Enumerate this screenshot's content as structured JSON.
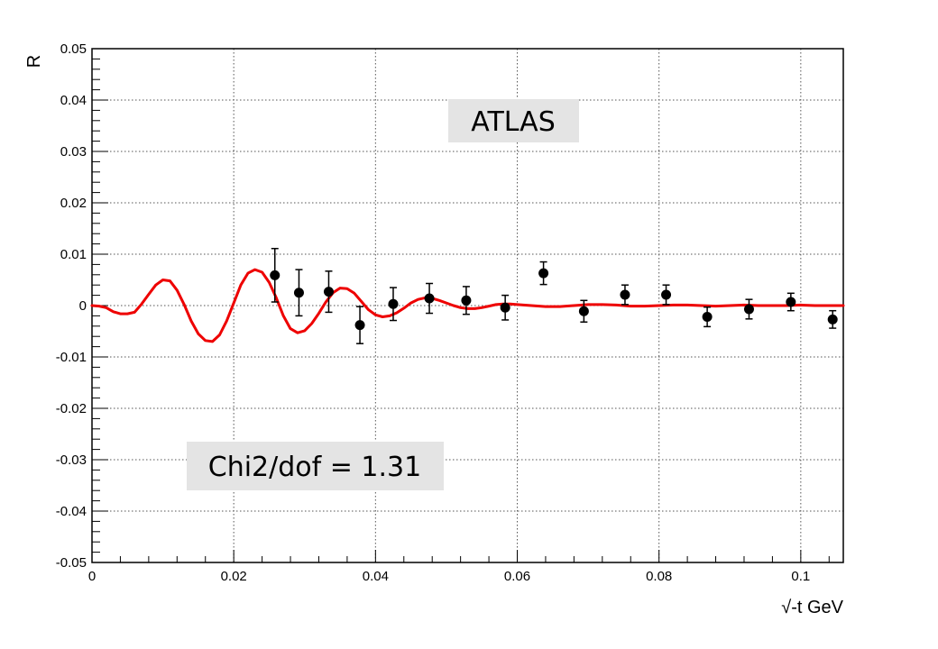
{
  "chart_data": {
    "type": "scatter",
    "title": "",
    "xlabel": "√-t GeV",
    "ylabel": "R",
    "xlim": [
      0,
      0.106
    ],
    "ylim": [
      -0.05,
      0.05
    ],
    "grid": true,
    "x_ticks": [
      0,
      0.02,
      0.04,
      0.06,
      0.08,
      0.1
    ],
    "x_tick_labels": [
      "0",
      "0.02",
      "0.04",
      "0.06",
      "0.08",
      "0.1"
    ],
    "y_ticks": [
      -0.05,
      -0.04,
      -0.03,
      -0.02,
      -0.01,
      0,
      0.01,
      0.02,
      0.03,
      0.04,
      0.05
    ],
    "y_tick_labels": [
      "-0.05",
      "-0.04",
      "-0.03",
      "-0.02",
      "-0.01",
      "0",
      "0.01",
      "0.02",
      "0.03",
      "0.04",
      "0.05"
    ],
    "annotations": [
      "ATLAS",
      "Chi2/dof = 1.31"
    ],
    "series": [
      {
        "kind": "points",
        "color": "#000000",
        "points": [
          {
            "x": 0.0258,
            "y": 0.0059,
            "err": 0.0052
          },
          {
            "x": 0.0292,
            "y": 0.0025,
            "err": 0.0045
          },
          {
            "x": 0.0334,
            "y": 0.0027,
            "err": 0.004
          },
          {
            "x": 0.0378,
            "y": -0.0038,
            "err": 0.0036
          },
          {
            "x": 0.0425,
            "y": 0.0003,
            "err": 0.0032
          },
          {
            "x": 0.0476,
            "y": 0.0014,
            "err": 0.0029
          },
          {
            "x": 0.0528,
            "y": 0.001,
            "err": 0.0027
          },
          {
            "x": 0.0583,
            "y": -0.0004,
            "err": 0.0024
          },
          {
            "x": 0.0637,
            "y": 0.0063,
            "err": 0.0022
          },
          {
            "x": 0.0694,
            "y": -0.0011,
            "err": 0.0021
          },
          {
            "x": 0.0752,
            "y": 0.0021,
            "err": 0.0019
          },
          {
            "x": 0.081,
            "y": 0.0021,
            "err": 0.0019
          },
          {
            "x": 0.0868,
            "y": -0.0022,
            "err": 0.0019
          },
          {
            "x": 0.0927,
            "y": -0.0007,
            "err": 0.0019
          },
          {
            "x": 0.0986,
            "y": 0.0007,
            "err": 0.0017
          },
          {
            "x": 0.1045,
            "y": -0.0027,
            "err": 0.0017
          }
        ]
      },
      {
        "kind": "curve",
        "color": "#ee0000",
        "x": [
          0,
          0.001,
          0.002,
          0.003,
          0.004,
          0.005,
          0.006,
          0.007,
          0.008,
          0.009,
          0.01,
          0.011,
          0.012,
          0.013,
          0.014,
          0.015,
          0.016,
          0.017,
          0.018,
          0.019,
          0.02,
          0.021,
          0.022,
          0.023,
          0.024,
          0.025,
          0.026,
          0.027,
          0.028,
          0.029,
          0.03,
          0.031,
          0.032,
          0.033,
          0.034,
          0.035,
          0.036,
          0.037,
          0.038,
          0.039,
          0.04,
          0.041,
          0.042,
          0.043,
          0.044,
          0.045,
          0.046,
          0.047,
          0.048,
          0.049,
          0.05,
          0.051,
          0.052,
          0.053,
          0.054,
          0.055,
          0.056,
          0.057,
          0.058,
          0.059,
          0.06,
          0.062,
          0.064,
          0.066,
          0.068,
          0.07,
          0.072,
          0.074,
          0.076,
          0.078,
          0.08,
          0.082,
          0.084,
          0.086,
          0.088,
          0.09,
          0.092,
          0.094,
          0.096,
          0.098,
          0.1,
          0.102,
          0.104,
          0.106
        ],
        "y": [
          0,
          -0.0001,
          -0.0004,
          -0.0012,
          -0.0016,
          -0.0016,
          -0.0013,
          0.0003,
          0.0022,
          0.004,
          0.005,
          0.0048,
          0.003,
          0.0002,
          -0.003,
          -0.0055,
          -0.0068,
          -0.007,
          -0.0057,
          -0.003,
          0.0005,
          0.004,
          0.0063,
          0.007,
          0.0065,
          0.0045,
          0.0015,
          -0.002,
          -0.0045,
          -0.0053,
          -0.0049,
          -0.0035,
          -0.0015,
          0.0007,
          0.0025,
          0.0034,
          0.0033,
          0.0024,
          0.0008,
          -0.0008,
          -0.0018,
          -0.0022,
          -0.002,
          -0.0014,
          -0.0005,
          0.0005,
          0.0012,
          0.0015,
          0.0014,
          0.001,
          0.0005,
          0.0,
          -0.0004,
          -0.0006,
          -0.0006,
          -0.0004,
          -0.0001,
          0.0002,
          0.0003,
          0.0003,
          0.0002,
          0.0,
          -0.0002,
          -0.0002,
          0.0,
          0.0002,
          0.0002,
          0.0001,
          -0.0001,
          -0.0001,
          0.0,
          0.0001,
          0.0001,
          0.0,
          -0.0001,
          0.0,
          0.0001,
          0.0,
          0.0,
          0.0,
          0.0001,
          0.0,
          0.0,
          0.0
        ]
      }
    ]
  }
}
